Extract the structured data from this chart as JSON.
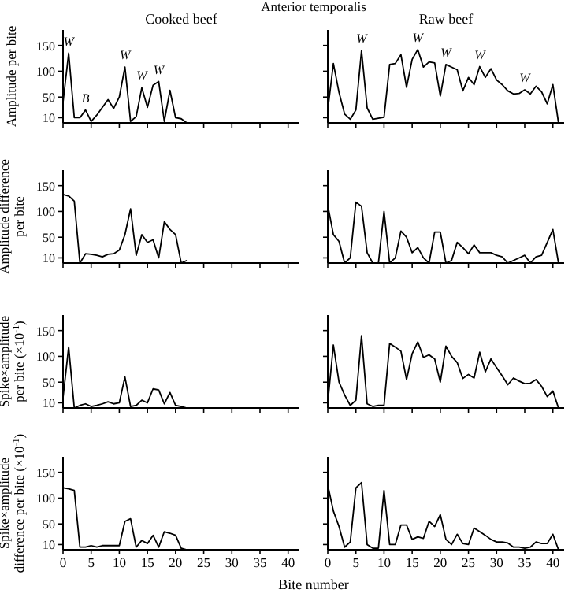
{
  "chart_data": [
    {
      "type": "line",
      "title": "Anterior temporalis",
      "subtitle": "Cooked beef",
      "ylabel": "Amplitude per bite",
      "x": [
        0,
        1,
        2,
        3,
        4,
        5,
        6,
        7,
        8,
        9,
        10,
        11,
        12,
        13,
        14,
        15,
        16,
        17,
        18,
        19,
        20,
        21,
        22
      ],
      "values": [
        40,
        135,
        10,
        10,
        25,
        3,
        15,
        30,
        45,
        28,
        50,
        108,
        3,
        12,
        68,
        30,
        73,
        80,
        3,
        63,
        10,
        8,
        0
      ],
      "color": "#000000",
      "xlim": [
        0,
        42
      ],
      "xticks": [
        {
          "value": 0,
          "label": null
        },
        {
          "value": 5,
          "label": null
        },
        {
          "value": 10,
          "label": null
        },
        {
          "value": 15,
          "label": null
        },
        {
          "value": 20,
          "label": null
        },
        {
          "value": 25,
          "label": null
        },
        {
          "value": 30,
          "label": null
        },
        {
          "value": 35,
          "label": null
        },
        {
          "value": 40,
          "label": null
        }
      ],
      "ylim": [
        0,
        180
      ],
      "yticks": [
        10,
        50,
        100,
        150
      ],
      "tick_labels": "y",
      "annotations": [
        {
          "text": "W",
          "x": 1,
          "y": 135
        },
        {
          "text": "B",
          "x": 4,
          "y": 25
        },
        {
          "text": "W",
          "x": 11,
          "y": 108
        },
        {
          "text": "W",
          "x": 14,
          "y": 68
        },
        {
          "text": "W",
          "x": 17,
          "y": 80
        }
      ]
    },
    {
      "type": "line",
      "subtitle": "Raw beef",
      "x": [
        0,
        1,
        2,
        3,
        4,
        5,
        6,
        7,
        8,
        9,
        10,
        11,
        12,
        13,
        14,
        15,
        16,
        17,
        18,
        19,
        20,
        21,
        22,
        23,
        24,
        25,
        26,
        27,
        28,
        29,
        30,
        31,
        32,
        33,
        34,
        35,
        36,
        37,
        38,
        39,
        40,
        41
      ],
      "values": [
        25,
        115,
        59,
        17,
        7,
        25,
        140,
        29,
        7,
        9,
        11,
        113,
        115,
        132,
        69,
        123,
        142,
        108,
        118,
        116,
        52,
        113,
        108,
        103,
        62,
        88,
        74,
        109,
        88,
        105,
        83,
        74,
        62,
        56,
        57,
        64,
        56,
        71,
        60,
        37,
        74,
        0
      ],
      "color": "#000000",
      "xlim": [
        0,
        42
      ],
      "xticks": [
        {
          "value": 0,
          "label": null
        },
        {
          "value": 5,
          "label": null
        },
        {
          "value": 10,
          "label": null
        },
        {
          "value": 15,
          "label": null
        },
        {
          "value": 20,
          "label": null
        },
        {
          "value": 25,
          "label": null
        },
        {
          "value": 30,
          "label": null
        },
        {
          "value": 35,
          "label": null
        },
        {
          "value": 40,
          "label": null
        }
      ],
      "ylim": [
        0,
        180
      ],
      "yticks": [
        {
          "value": 10,
          "label": null
        },
        {
          "value": 50,
          "label": null
        },
        {
          "value": 100,
          "label": null
        },
        {
          "value": 150,
          "label": null
        }
      ],
      "tick_labels": false,
      "annotations": [
        {
          "text": "W",
          "x": 6,
          "y": 140
        },
        {
          "text": "W",
          "x": 16,
          "y": 142
        },
        {
          "text": "W",
          "x": 21,
          "y": 113
        },
        {
          "text": "W",
          "x": 27,
          "y": 109
        },
        {
          "text": "W",
          "x": 35,
          "y": 64
        }
      ]
    },
    {
      "type": "line",
      "ylabel": "Amplitude difference\nper bite",
      "x": [
        0,
        1,
        2,
        3,
        4,
        5,
        6,
        7,
        8,
        9,
        10,
        11,
        12,
        13,
        14,
        15,
        16,
        17,
        18,
        19,
        20,
        21,
        22
      ],
      "values": [
        133,
        130,
        120,
        0,
        18,
        17,
        15,
        12,
        17,
        18,
        25,
        55,
        105,
        15,
        55,
        40,
        45,
        10,
        80,
        65,
        55,
        0,
        5
      ],
      "color": "#000000",
      "xlim": [
        0,
        42
      ],
      "xticks": [
        {
          "value": 0,
          "label": null
        },
        {
          "value": 5,
          "label": null
        },
        {
          "value": 10,
          "label": null
        },
        {
          "value": 15,
          "label": null
        },
        {
          "value": 20,
          "label": null
        },
        {
          "value": 25,
          "label": null
        },
        {
          "value": 30,
          "label": null
        },
        {
          "value": 35,
          "label": null
        },
        {
          "value": 40,
          "label": null
        }
      ],
      "ylim": [
        0,
        180
      ],
      "yticks": [
        10,
        50,
        100,
        150
      ],
      "tick_labels": "y"
    },
    {
      "type": "line",
      "x": [
        0,
        1,
        2,
        3,
        4,
        5,
        6,
        7,
        8,
        9,
        10,
        11,
        12,
        13,
        14,
        15,
        16,
        17,
        18,
        19,
        20,
        21,
        22,
        23,
        24,
        25,
        26,
        27,
        28,
        29,
        30,
        31,
        32,
        33,
        34,
        35,
        36,
        37,
        38,
        39,
        40,
        41
      ],
      "values": [
        112,
        55,
        42,
        0,
        10,
        118,
        110,
        20,
        0,
        0,
        100,
        0,
        10,
        62,
        50,
        20,
        30,
        10,
        0,
        60,
        60,
        0,
        5,
        40,
        30,
        18,
        35,
        20,
        20,
        20,
        15,
        12,
        0,
        5,
        10,
        15,
        0,
        12,
        15,
        40,
        65,
        0
      ],
      "color": "#000000",
      "xlim": [
        0,
        42
      ],
      "xticks": [
        {
          "value": 0,
          "label": null
        },
        {
          "value": 5,
          "label": null
        },
        {
          "value": 10,
          "label": null
        },
        {
          "value": 15,
          "label": null
        },
        {
          "value": 20,
          "label": null
        },
        {
          "value": 25,
          "label": null
        },
        {
          "value": 30,
          "label": null
        },
        {
          "value": 35,
          "label": null
        },
        {
          "value": 40,
          "label": null
        }
      ],
      "ylim": [
        0,
        180
      ],
      "yticks": [
        {
          "value": 10,
          "label": null
        },
        {
          "value": 50,
          "label": null
        },
        {
          "value": 100,
          "label": null
        },
        {
          "value": 150,
          "label": null
        }
      ],
      "tick_labels": false
    },
    {
      "type": "line",
      "ylabel": "Spike×amplitude\nper bite (×10$^{-1}$)",
      "x": [
        0,
        1,
        2,
        3,
        4,
        5,
        6,
        7,
        8,
        9,
        10,
        11,
        12,
        13,
        14,
        15,
        16,
        17,
        18,
        19,
        20,
        21,
        22
      ],
      "values": [
        20,
        118,
        0,
        5,
        8,
        3,
        5,
        8,
        12,
        8,
        10,
        60,
        3,
        5,
        15,
        10,
        37,
        35,
        8,
        30,
        5,
        3,
        0
      ],
      "color": "#000000",
      "xlim": [
        0,
        42
      ],
      "xticks": [
        {
          "value": 0,
          "label": null
        },
        {
          "value": 5,
          "label": null
        },
        {
          "value": 10,
          "label": null
        },
        {
          "value": 15,
          "label": null
        },
        {
          "value": 20,
          "label": null
        },
        {
          "value": 25,
          "label": null
        },
        {
          "value": 30,
          "label": null
        },
        {
          "value": 35,
          "label": null
        },
        {
          "value": 40,
          "label": null
        }
      ],
      "ylim": [
        0,
        180
      ],
      "yticks": [
        10,
        50,
        100,
        150
      ],
      "tick_labels": "y"
    },
    {
      "type": "line",
      "x": [
        0,
        1,
        2,
        3,
        4,
        5,
        6,
        7,
        8,
        9,
        10,
        11,
        12,
        13,
        14,
        15,
        16,
        17,
        18,
        19,
        20,
        21,
        22,
        23,
        24,
        25,
        26,
        27,
        28,
        29,
        30,
        31,
        32,
        33,
        34,
        35,
        36,
        37,
        38,
        39,
        40,
        41
      ],
      "values": [
        10,
        122,
        50,
        25,
        5,
        15,
        140,
        8,
        3,
        5,
        5,
        125,
        118,
        110,
        55,
        105,
        128,
        98,
        103,
        95,
        50,
        120,
        100,
        88,
        57,
        65,
        58,
        108,
        70,
        95,
        78,
        62,
        45,
        58,
        52,
        47,
        48,
        55,
        42,
        22,
        33,
        0
      ],
      "color": "#000000",
      "xlim": [
        0,
        42
      ],
      "xticks": [
        {
          "value": 0,
          "label": null
        },
        {
          "value": 5,
          "label": null
        },
        {
          "value": 10,
          "label": null
        },
        {
          "value": 15,
          "label": null
        },
        {
          "value": 20,
          "label": null
        },
        {
          "value": 25,
          "label": null
        },
        {
          "value": 30,
          "label": null
        },
        {
          "value": 35,
          "label": null
        },
        {
          "value": 40,
          "label": null
        }
      ],
      "ylim": [
        0,
        180
      ],
      "yticks": [
        {
          "value": 10,
          "label": null
        },
        {
          "value": 50,
          "label": null
        },
        {
          "value": 100,
          "label": null
        },
        {
          "value": 150,
          "label": null
        }
      ],
      "tick_labels": false
    },
    {
      "type": "line",
      "xlabel": "Bite number",
      "ylabel": "Spike×amplitude\ndifference per bite (×10$^{-1}$)",
      "x": [
        0,
        1,
        2,
        3,
        4,
        5,
        6,
        7,
        8,
        9,
        10,
        11,
        12,
        13,
        14,
        15,
        16,
        17,
        18,
        19,
        20,
        21,
        22
      ],
      "values": [
        120,
        118,
        115,
        5,
        5,
        8,
        5,
        8,
        8,
        8,
        8,
        55,
        60,
        5,
        18,
        12,
        28,
        5,
        35,
        32,
        28,
        3,
        0
      ],
      "color": "#000000",
      "xlim": [
        0,
        42
      ],
      "xticks": [
        0,
        5,
        10,
        15,
        20,
        25,
        30,
        35,
        40
      ],
      "ylim": [
        0,
        180
      ],
      "yticks": [
        10,
        50,
        100,
        150
      ]
    },
    {
      "type": "line",
      "x": [
        0,
        1,
        2,
        3,
        4,
        5,
        6,
        7,
        8,
        9,
        10,
        11,
        12,
        13,
        14,
        15,
        16,
        17,
        18,
        19,
        20,
        21,
        22,
        23,
        24,
        25,
        26,
        27,
        28,
        29,
        30,
        31,
        32,
        33,
        34,
        35,
        36,
        37,
        38,
        39,
        40,
        41
      ],
      "values": [
        125,
        75,
        45,
        5,
        15,
        120,
        130,
        10,
        3,
        3,
        115,
        10,
        10,
        48,
        48,
        20,
        25,
        22,
        55,
        45,
        68,
        20,
        10,
        30,
        12,
        10,
        42,
        35,
        28,
        20,
        15,
        15,
        13,
        5,
        5,
        3,
        5,
        15,
        12,
        12,
        30,
        0
      ],
      "color": "#000000",
      "xlim": [
        0,
        42
      ],
      "xticks": [
        0,
        5,
        10,
        15,
        20,
        25,
        30,
        35,
        40
      ],
      "ylim": [
        0,
        180
      ],
      "yticks": [
        {
          "value": 10,
          "label": null
        },
        {
          "value": 50,
          "label": null
        },
        {
          "value": 100,
          "label": null
        },
        {
          "value": 150,
          "label": null
        }
      ],
      "tick_labels": "x"
    }
  ]
}
